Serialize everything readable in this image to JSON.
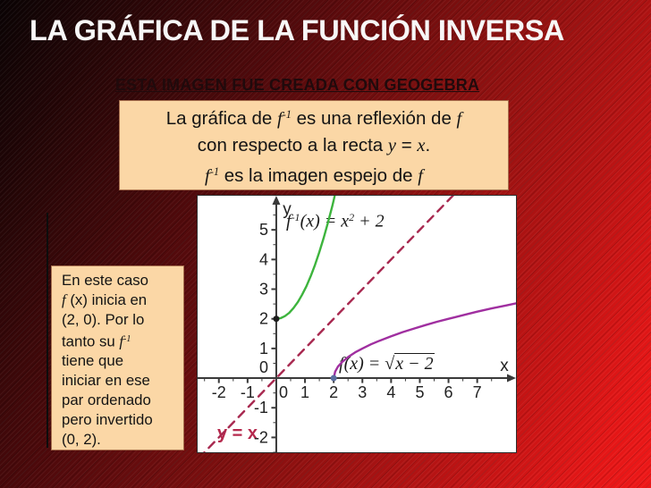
{
  "slide": {
    "title": "LA GRÁFICA DE LA FUNCIÓN INVERSA",
    "geogebra_link": "ESTA IMAGEN FUE CREADA CON GEOGEBRA"
  },
  "colors": {
    "box_peach": "#fbd7a6",
    "title_text": "#f7f7f7",
    "link_text": "#200a0c",
    "inverse_curve_green": "#3db43d",
    "function_curve_purple": "#a02fa0",
    "identity_line_crimson": "#a82950",
    "identity_label_crimson": "#b5294d",
    "background_red": "#b51313"
  },
  "info_box": {
    "lines": [
      [
        {
          "t": "La gráfica de "
        },
        {
          "s": "f",
          "t": "f"
        },
        {
          "s": "sup",
          "t": "-1"
        },
        {
          "t": " es una reflexión de "
        },
        {
          "s": "f",
          "t": "f"
        }
      ],
      [
        {
          "t": "con respecto a la recta "
        },
        {
          "s": "f",
          "t": "y"
        },
        {
          "t": " = "
        },
        {
          "s": "f",
          "t": "x"
        },
        {
          "t": "."
        }
      ],
      [
        {
          "s": "f",
          "t": "f"
        },
        {
          "s": "sup",
          "t": "-1"
        },
        {
          "t": " es la imagen espejo de "
        },
        {
          "s": "f",
          "t": "f"
        }
      ]
    ]
  },
  "side_note": {
    "lines": [
      [
        {
          "t": "En este caso"
        }
      ],
      [
        {
          "s": "f",
          "t": "f"
        },
        {
          "t": " (x) inicia en"
        }
      ],
      [
        {
          "t": "(2, 0). Por lo"
        }
      ],
      [
        {
          "t": "tanto su "
        },
        {
          "s": "f",
          "t": "f"
        },
        {
          "s": "sup",
          "t": "-1"
        }
      ],
      [
        {
          "t": "tiene que"
        }
      ],
      [
        {
          "t": "iniciar en ese"
        }
      ],
      [
        {
          "t": "par ordenado"
        }
      ],
      [
        {
          "t": "pero invertido"
        }
      ],
      [
        {
          "t": "(0, 2)."
        }
      ]
    ]
  },
  "graph_labels": {
    "inverse_formula": [
      {
        "s": "f",
        "t": "f"
      },
      {
        "s": "sup",
        "t": "-1"
      },
      {
        "s": "f",
        "t": "(x) = x"
      },
      {
        "s": "sup",
        "t": "2"
      },
      {
        "s": "f",
        "t": " + 2"
      }
    ],
    "function_formula": [
      {
        "s": "f",
        "t": "f"
      },
      {
        "s": "f",
        "t": "(x) = "
      },
      {
        "s": "rad",
        "t": "√"
      },
      {
        "s": "ov",
        "t": "x − 2"
      }
    ],
    "identity_label": "y = x"
  },
  "chart_data": {
    "type": "line",
    "title": "",
    "xlabel": "x",
    "ylabel": "y",
    "x_range": [
      -2.74,
      8.35
    ],
    "y_range": [
      -2.5,
      6.15
    ],
    "x_ticks": [
      -2,
      -1,
      0,
      1,
      2,
      3,
      4,
      5,
      6,
      7
    ],
    "y_ticks": [
      -2,
      -1,
      0,
      1,
      2,
      3,
      4,
      5
    ],
    "grid": false,
    "axis_color": "#3a3a3a",
    "tick_label_color": "#222222",
    "series": [
      {
        "name": "f^-1(x) = x^2 + 2",
        "color": "#3db43d",
        "style": "solid",
        "points": [
          [
            0,
            2
          ],
          [
            0.15,
            2.02
          ],
          [
            0.3,
            2.09
          ],
          [
            0.45,
            2.2
          ],
          [
            0.6,
            2.36
          ],
          [
            0.75,
            2.56
          ],
          [
            0.9,
            2.81
          ],
          [
            1.05,
            3.1
          ],
          [
            1.2,
            3.44
          ],
          [
            1.35,
            3.82
          ],
          [
            1.5,
            4.25
          ],
          [
            1.65,
            4.72
          ],
          [
            1.8,
            5.24
          ],
          [
            1.95,
            5.8
          ],
          [
            2.06,
            6.25
          ]
        ]
      },
      {
        "name": "f(x) = sqrt(x - 2)",
        "color": "#a02fa0",
        "style": "solid",
        "points": [
          [
            2,
            0
          ],
          [
            2.05,
            0.22
          ],
          [
            2.15,
            0.39
          ],
          [
            2.3,
            0.55
          ],
          [
            2.5,
            0.71
          ],
          [
            2.75,
            0.87
          ],
          [
            3,
            1
          ],
          [
            3.3,
            1.14
          ],
          [
            3.6,
            1.26
          ],
          [
            4,
            1.41
          ],
          [
            4.4,
            1.55
          ],
          [
            4.8,
            1.67
          ],
          [
            5.2,
            1.79
          ],
          [
            5.6,
            1.9
          ],
          [
            6,
            2
          ],
          [
            6.5,
            2.12
          ],
          [
            7,
            2.24
          ],
          [
            7.5,
            2.35
          ],
          [
            8,
            2.45
          ],
          [
            8.35,
            2.52
          ]
        ]
      },
      {
        "name": "y = x",
        "color": "#a82950",
        "style": "dashed",
        "points": [
          [
            -2.7,
            -2.7
          ],
          [
            6.3,
            6.3
          ]
        ]
      }
    ],
    "markers": [
      {
        "x": 0,
        "y": 2,
        "color": "#1c1c1c"
      },
      {
        "x": 2,
        "y": 0,
        "color": "#5b6e9f"
      }
    ]
  }
}
